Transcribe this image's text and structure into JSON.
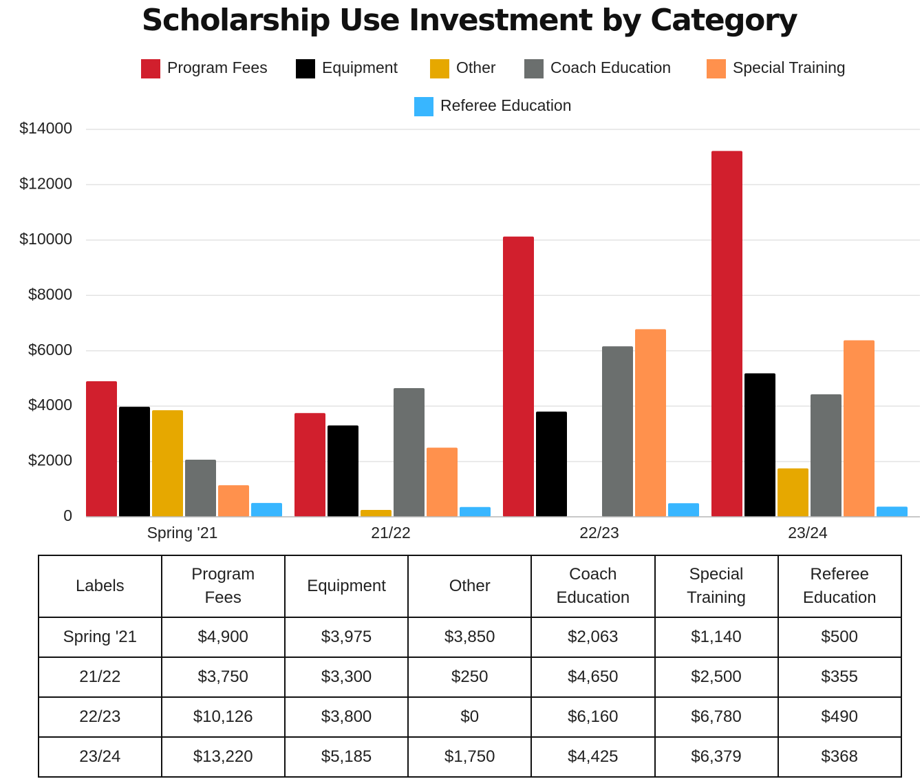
{
  "chart_data": {
    "type": "bar",
    "title": "Scholarship Use Investment by Category",
    "categories": [
      "Spring '21",
      "21/22",
      "22/23",
      "23/24"
    ],
    "series": [
      {
        "name": "Program Fees",
        "color": "#d11f2d",
        "values": [
          4900,
          3750,
          10126,
          13220
        ],
        "value_labels": [
          "$4,900",
          "$3,750",
          "$10,126",
          "$13,220"
        ]
      },
      {
        "name": "Equipment",
        "color": "#000000",
        "values": [
          3975,
          3300,
          3800,
          5185
        ],
        "value_labels": [
          "$3,975",
          "$3,300",
          "$3,800",
          "$5,185"
        ]
      },
      {
        "name": "Other",
        "color": "#e6a800",
        "values": [
          3850,
          250,
          0,
          1750
        ],
        "value_labels": [
          "$3,850",
          "$250",
          "$0",
          "$1,750"
        ]
      },
      {
        "name": "Coach Education",
        "color": "#6b6f6e",
        "values": [
          2063,
          4650,
          6160,
          4425
        ],
        "value_labels": [
          "$2,063",
          "$4,650",
          "$6,160",
          "$4,425"
        ]
      },
      {
        "name": "Special Training",
        "color": "#ff914d",
        "values": [
          1140,
          2500,
          6780,
          6379
        ],
        "value_labels": [
          "$1,140",
          "$2,500",
          "$6,780",
          "$6,379"
        ]
      },
      {
        "name": "Referee Education",
        "color": "#38b6ff",
        "values": [
          500,
          355,
          490,
          368
        ],
        "value_labels": [
          "$500",
          "$355",
          "$490",
          "$368"
        ]
      }
    ],
    "ylim": [
      0,
      14000
    ],
    "yticks": [
      0,
      {
        "value": 2000,
        "label": "$2000"
      },
      {
        "value": 4000,
        "label": "$4000"
      },
      {
        "value": 6000,
        "label": "$6000"
      },
      {
        "value": 8000,
        "label": "$8000"
      },
      {
        "value": 10000,
        "label": "$10000"
      },
      {
        "value": 12000,
        "label": "$12000"
      },
      {
        "value": 14000,
        "label": "$14000"
      }
    ],
    "grid": true,
    "legend": "top"
  },
  "table": {
    "corner": "Labels"
  }
}
